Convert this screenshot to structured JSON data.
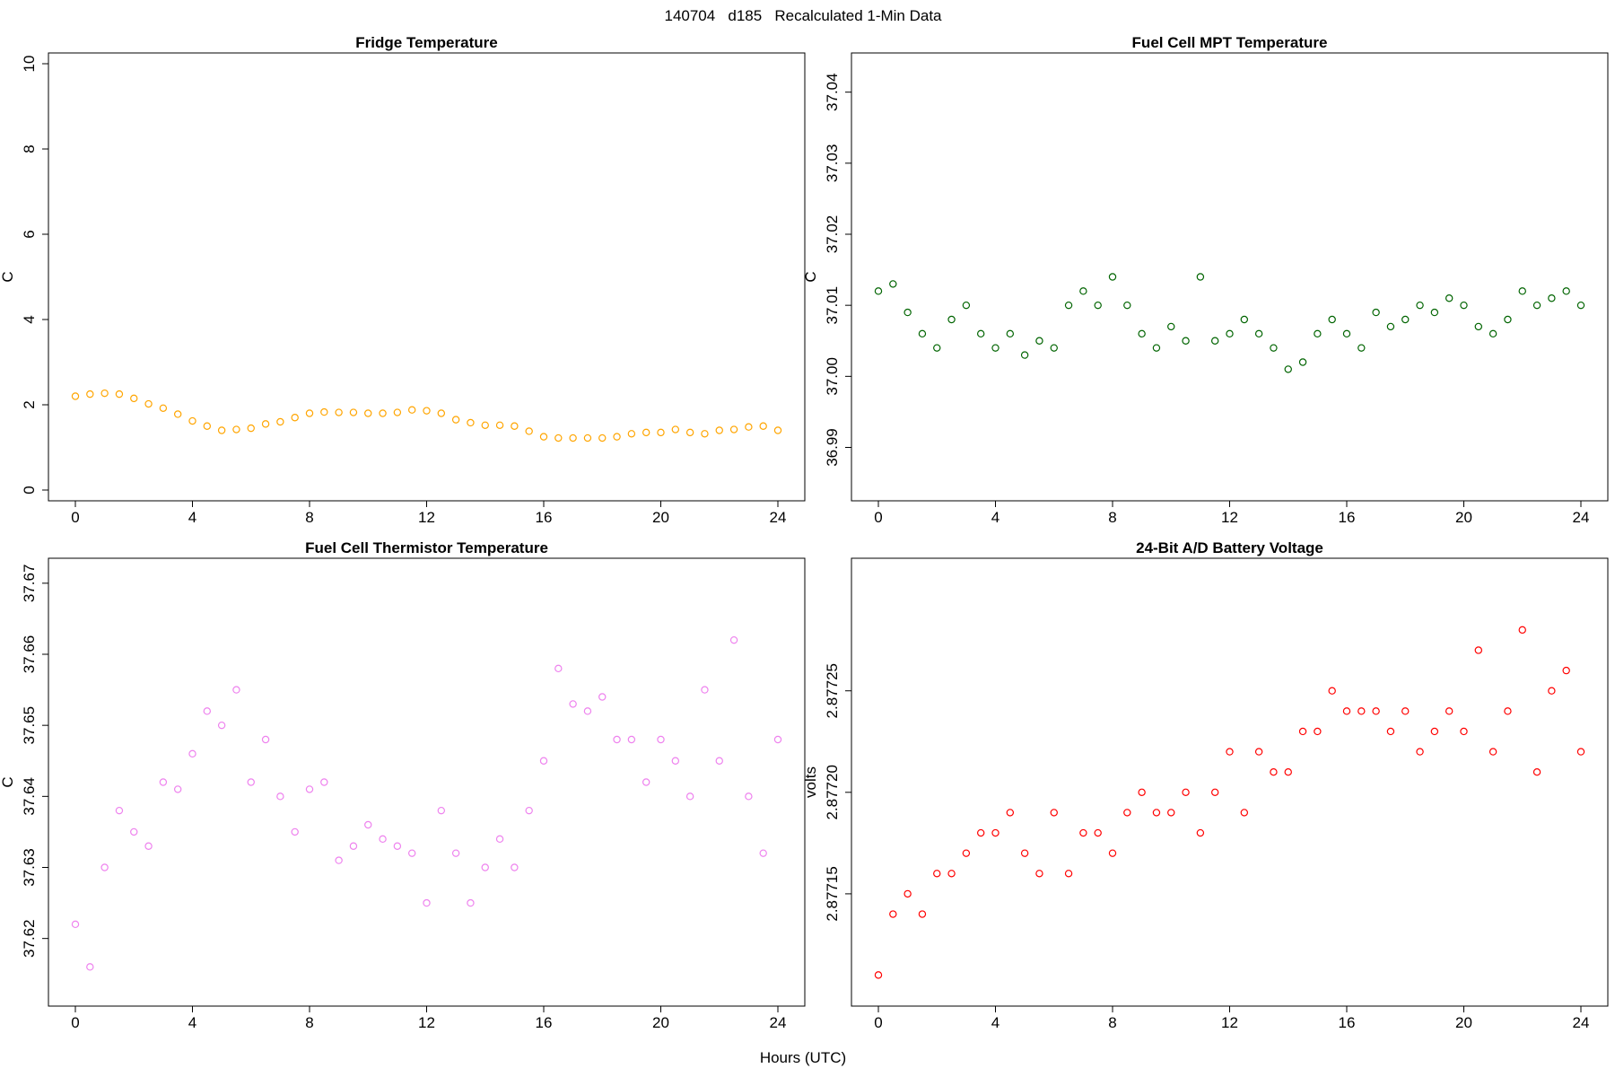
{
  "figure": {
    "title": "140704   d185   Recalculated 1-Min Data",
    "xlabel": "Hours (UTC)"
  },
  "chart_data": [
    {
      "type": "scatter",
      "title": "Fridge Temperature",
      "xlabel": "Hours (UTC)",
      "ylabel": "C",
      "xlim": [
        0,
        24
      ],
      "ylim": [
        0,
        10
      ],
      "xticks": [
        0,
        4,
        8,
        12,
        16,
        20,
        24
      ],
      "yticks": [
        0,
        2,
        4,
        6,
        8,
        10
      ],
      "ytick_labels": [
        "0",
        "2",
        "4",
        "6",
        "8",
        "10"
      ],
      "color": "#ffa500",
      "marker": "open-circle",
      "grid": false,
      "series": [
        {
          "x": [
            0,
            0.5,
            1,
            1.5,
            2,
            2.5,
            3,
            3.5,
            4,
            4.5,
            5,
            5.5,
            6,
            6.5,
            7,
            7.5,
            8,
            8.5,
            9,
            9.5,
            10,
            10.5,
            11,
            11.5,
            12,
            12.5,
            13,
            13.5,
            14,
            14.5,
            15,
            15.5,
            16,
            16.5,
            17,
            17.5,
            18,
            18.5,
            19,
            19.5,
            20,
            20.5,
            21,
            21.5,
            22,
            22.5,
            23,
            23.5,
            24
          ],
          "y": [
            2.2,
            2.25,
            2.27,
            2.25,
            2.15,
            2.02,
            1.92,
            1.78,
            1.62,
            1.5,
            1.4,
            1.42,
            1.45,
            1.55,
            1.6,
            1.7,
            1.8,
            1.83,
            1.82,
            1.82,
            1.8,
            1.8,
            1.82,
            1.88,
            1.86,
            1.8,
            1.65,
            1.58,
            1.52,
            1.52,
            1.5,
            1.38,
            1.25,
            1.22,
            1.22,
            1.22,
            1.22,
            1.25,
            1.32,
            1.35,
            1.35,
            1.42,
            1.35,
            1.32,
            1.4,
            1.42,
            1.48,
            1.5,
            1.4
          ]
        }
      ]
    },
    {
      "type": "scatter",
      "title": "Fuel Cell MPT Temperature",
      "xlabel": "Hours (UTC)",
      "ylabel": "C",
      "xlim": [
        0,
        24
      ],
      "ylim": [
        36.984,
        37.044
      ],
      "xticks": [
        0,
        4,
        8,
        12,
        16,
        20,
        24
      ],
      "yticks": [
        36.99,
        37.0,
        37.01,
        37.02,
        37.03,
        37.04
      ],
      "ytick_labels": [
        "36.99",
        "37.00",
        "37.01",
        "37.02",
        "37.03",
        "37.04"
      ],
      "color": "#006400",
      "marker": "open-circle",
      "grid": false,
      "series": [
        {
          "x": [
            0,
            0.5,
            1,
            1.5,
            2,
            2.5,
            3,
            3.5,
            4,
            4.5,
            5,
            5.5,
            6,
            6.5,
            7,
            7.5,
            8,
            8.5,
            9,
            9.5,
            10,
            10.5,
            11,
            11.5,
            12,
            12.5,
            13,
            13.5,
            14,
            14.5,
            15,
            15.5,
            16,
            16.5,
            17,
            17.5,
            18,
            18.5,
            19,
            19.5,
            20,
            20.5,
            21,
            21.5,
            22,
            22.5,
            23,
            23.5,
            24
          ],
          "y": [
            37.012,
            37.013,
            37.009,
            37.006,
            37.004,
            37.008,
            37.01,
            37.006,
            37.004,
            37.006,
            37.003,
            37.005,
            37.004,
            37.01,
            37.012,
            37.01,
            37.014,
            37.01,
            37.006,
            37.004,
            37.007,
            37.005,
            37.014,
            37.005,
            37.006,
            37.008,
            37.006,
            37.004,
            37.001,
            37.002,
            37.006,
            37.008,
            37.006,
            37.004,
            37.009,
            37.007,
            37.008,
            37.01,
            37.009,
            37.011,
            37.01,
            37.007,
            37.006,
            37.008,
            37.012,
            37.01,
            37.011,
            37.012,
            37.01
          ]
        }
      ]
    },
    {
      "type": "scatter",
      "title": "Fuel Cell Thermistor Temperature",
      "xlabel": "Hours (UTC)",
      "ylabel": "C",
      "xlim": [
        0,
        24
      ],
      "ylim": [
        37.612,
        37.672
      ],
      "xticks": [
        0,
        4,
        8,
        12,
        16,
        20,
        24
      ],
      "yticks": [
        37.62,
        37.63,
        37.64,
        37.65,
        37.66,
        37.67
      ],
      "ytick_labels": [
        "37.62",
        "37.63",
        "37.64",
        "37.65",
        "37.66",
        "37.67"
      ],
      "color": "#ee82ee",
      "marker": "open-circle",
      "grid": false,
      "series": [
        {
          "x": [
            0,
            0.5,
            1,
            1.5,
            2,
            2.5,
            3,
            3.5,
            4,
            4.5,
            5,
            5.5,
            6,
            6.5,
            7,
            7.5,
            8,
            8.5,
            9,
            9.5,
            10,
            10.5,
            11,
            11.5,
            12,
            12.5,
            13,
            13.5,
            14,
            14.5,
            15,
            15.5,
            16,
            16.5,
            17,
            17.5,
            18,
            18.5,
            19,
            19.5,
            20,
            20.5,
            21,
            21.5,
            22,
            22.5,
            23,
            23.5,
            24
          ],
          "y": [
            37.622,
            37.616,
            37.63,
            37.638,
            37.635,
            37.633,
            37.642,
            37.641,
            37.646,
            37.652,
            37.65,
            37.655,
            37.642,
            37.648,
            37.64,
            37.635,
            37.641,
            37.642,
            37.631,
            37.633,
            37.636,
            37.634,
            37.633,
            37.632,
            37.625,
            37.638,
            37.632,
            37.625,
            37.63,
            37.634,
            37.63,
            37.638,
            37.645,
            37.658,
            37.653,
            37.652,
            37.654,
            37.648,
            37.648,
            37.642,
            37.648,
            37.645,
            37.64,
            37.655,
            37.645,
            37.662,
            37.64,
            37.632,
            37.648
          ]
        }
      ]
    },
    {
      "type": "scatter",
      "title": "24-Bit A/D Battery Voltage",
      "xlabel": "Hours (UTC)",
      "ylabel": "volts",
      "xlim": [
        0,
        24
      ],
      "ylim": [
        2.8771,
        2.87731
      ],
      "xticks": [
        0,
        4,
        8,
        12,
        16,
        20,
        24
      ],
      "yticks": [
        2.87715,
        2.8772,
        2.87725
      ],
      "ytick_labels": [
        "2.87715",
        "2.87720",
        "2.87725"
      ],
      "color": "#ff0000",
      "marker": "open-circle",
      "grid": false,
      "series": [
        {
          "x": [
            0,
            0.5,
            1,
            1.5,
            2,
            2.5,
            3,
            3.5,
            4,
            4.5,
            5,
            5.5,
            6,
            6.5,
            7,
            7.5,
            8,
            8.5,
            9,
            9.5,
            10,
            10.5,
            11,
            11.5,
            12,
            12.5,
            13,
            13.5,
            14,
            14.5,
            15,
            15.5,
            16,
            16.5,
            17,
            17.5,
            18,
            18.5,
            19,
            19.5,
            20,
            20.5,
            21,
            21.5,
            22,
            22.5,
            23,
            23.5,
            24
          ],
          "y": [
            2.87711,
            2.87714,
            2.87715,
            2.87714,
            2.87716,
            2.87716,
            2.87717,
            2.87718,
            2.87718,
            2.87719,
            2.87717,
            2.87716,
            2.87719,
            2.87716,
            2.87718,
            2.87718,
            2.87717,
            2.87719,
            2.8772,
            2.87719,
            2.87719,
            2.8772,
            2.87718,
            2.8772,
            2.87722,
            2.87719,
            2.87722,
            2.87721,
            2.87721,
            2.87723,
            2.87723,
            2.87725,
            2.87724,
            2.87724,
            2.87724,
            2.87723,
            2.87724,
            2.87722,
            2.87723,
            2.87724,
            2.87723,
            2.87727,
            2.87722,
            2.87724,
            2.87728,
            2.87721,
            2.87725,
            2.87726,
            2.87722
          ]
        }
      ]
    }
  ]
}
